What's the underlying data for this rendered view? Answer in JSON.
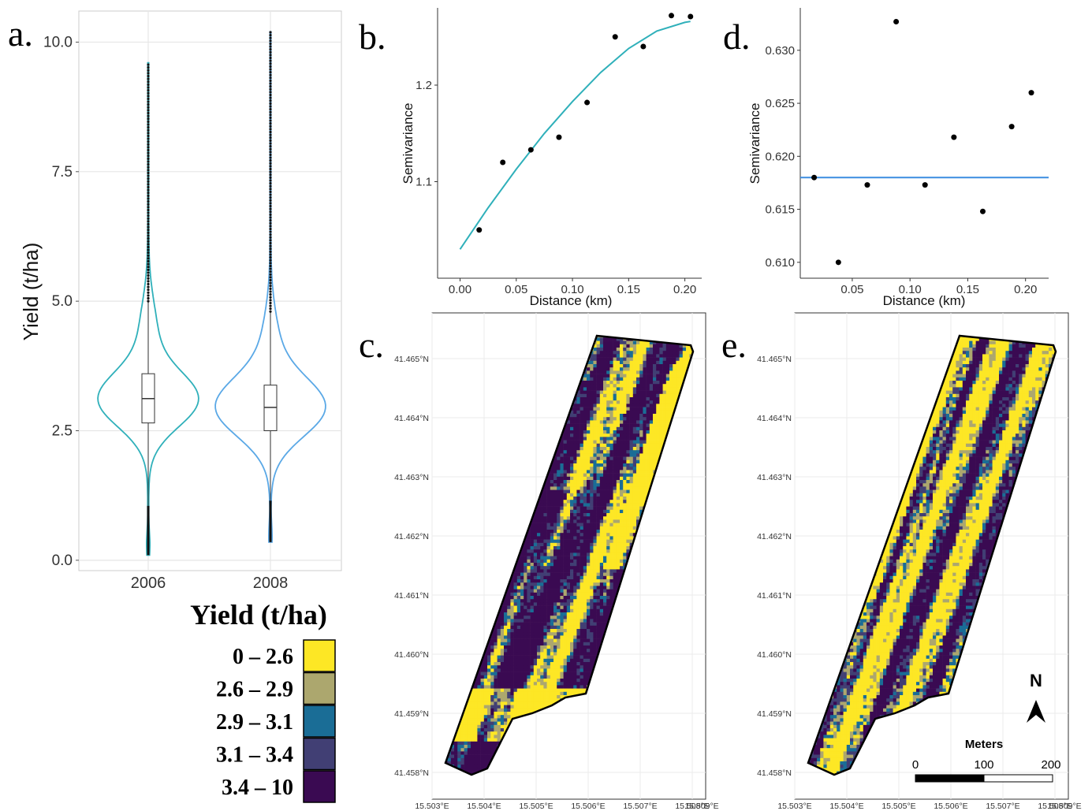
{
  "panels": {
    "a": "a.",
    "b": "b.",
    "c": "c.",
    "d": "d.",
    "e": "e."
  },
  "colors": {
    "violin_2006": "#2fb0ba",
    "violin_2008": "#5aa8e6",
    "fit_b": "#2fb0ba",
    "fit_d": "#3b8de0",
    "grid": "#e6e6e6",
    "class1": "#fde725",
    "class2": "#aca76e",
    "class3": "#1a6d96",
    "class4": "#413f74",
    "class5": "#3a0a52"
  },
  "legend": {
    "title": "Yield (t/ha)",
    "items": [
      "0 – 2.6",
      "2.6 – 2.9",
      "2.9 – 3.1",
      "3.1 – 3.4",
      "3.4 – 10"
    ]
  },
  "map_axes": {
    "y_ticks": [
      "41.458°N",
      "41.459°N",
      "41.460°N",
      "41.461°N",
      "41.462°N",
      "41.463°N",
      "41.464°N",
      "41.465°N"
    ],
    "x_ticks": [
      "15.503°E",
      "15.504°E",
      "15.505°E",
      "15.506°E",
      "15.507°E",
      "15.508°E",
      "15.509°E"
    ]
  },
  "north_arrow": {
    "label": "N"
  },
  "scale_bar": {
    "title": "Meters",
    "labels": [
      "0",
      "100",
      "200"
    ]
  },
  "chart_data": [
    {
      "panel": "a",
      "type": "violin",
      "categories": [
        "2006",
        "2008"
      ],
      "ylabel": "Yield (t/ha)",
      "xlabel": "",
      "ylim": [
        -0.2,
        10.6
      ],
      "yticks": [
        0.0,
        2.5,
        5.0,
        7.5,
        10.0
      ],
      "ytick_labels": [
        "0.0",
        "2.5",
        "5.0",
        "7.5",
        "10.0"
      ],
      "grid": true,
      "box": [
        {
          "name": "2006",
          "q1": 2.65,
          "median": 3.12,
          "q3": 3.6,
          "whisker_low": 1.05,
          "whisker_high": 5.0,
          "min": 0.1,
          "max": 9.6
        },
        {
          "name": "2008",
          "q1": 2.5,
          "median": 2.95,
          "q3": 3.38,
          "whisker_low": 1.15,
          "whisker_high": 4.8,
          "min": 0.35,
          "max": 10.2
        }
      ]
    },
    {
      "panel": "b",
      "type": "scatter",
      "xlabel": "Distance (km)",
      "ylabel": "Semivariance",
      "xlim": [
        -0.02,
        0.215
      ],
      "ylim": [
        1.0,
        1.28
      ],
      "xticks": [
        0.0,
        0.05,
        0.1,
        0.15,
        0.2
      ],
      "xtick_labels": [
        "0.00",
        "0.05",
        "0.10",
        "0.15",
        "0.20"
      ],
      "yticks": [
        1.1,
        1.2
      ],
      "ytick_labels": [
        "1.1",
        "1.2"
      ],
      "points": {
        "x": [
          0.017,
          0.038,
          0.063,
          0.088,
          0.113,
          0.138,
          0.163,
          0.188,
          0.205
        ],
        "y": [
          1.05,
          1.12,
          1.133,
          1.146,
          1.182,
          1.25,
          1.24,
          1.272,
          1.271
        ]
      },
      "fit": {
        "x": [
          0.0,
          0.025,
          0.05,
          0.075,
          0.1,
          0.125,
          0.15,
          0.175,
          0.2,
          0.205
        ],
        "y": [
          1.03,
          1.073,
          1.113,
          1.15,
          1.183,
          1.213,
          1.238,
          1.256,
          1.265,
          1.266
        ]
      }
    },
    {
      "panel": "d",
      "type": "scatter",
      "xlabel": "Distance (km)",
      "ylabel": "Semivariance",
      "xlim": [
        0.005,
        0.22
      ],
      "ylim": [
        0.6085,
        0.634
      ],
      "xticks": [
        0.05,
        0.1,
        0.15,
        0.2
      ],
      "xtick_labels": [
        "0.05",
        "0.10",
        "0.15",
        "0.20"
      ],
      "yticks": [
        0.61,
        0.615,
        0.62,
        0.625,
        0.63
      ],
      "ytick_labels": [
        "0.610",
        "0.615",
        "0.620",
        "0.625",
        "0.630"
      ],
      "points": {
        "x": [
          0.017,
          0.038,
          0.063,
          0.088,
          0.113,
          0.138,
          0.163,
          0.188,
          0.205
        ],
        "y": [
          0.618,
          0.61,
          0.6173,
          0.6327,
          0.6173,
          0.6218,
          0.6148,
          0.6228,
          0.626
        ]
      },
      "fit": {
        "x": [
          0.005,
          0.22
        ],
        "y": [
          0.618,
          0.618
        ]
      }
    },
    {
      "panel": "c",
      "type": "heatmap",
      "description_field": "kriged yield map 2006",
      "xlim": [
        15.503,
        15.509
      ],
      "ylim": [
        41.458,
        41.465
      ]
    },
    {
      "panel": "e",
      "type": "heatmap",
      "description_field": "kriged yield map 2008",
      "xlim": [
        15.503,
        15.509
      ],
      "ylim": [
        41.458,
        41.465
      ]
    }
  ]
}
